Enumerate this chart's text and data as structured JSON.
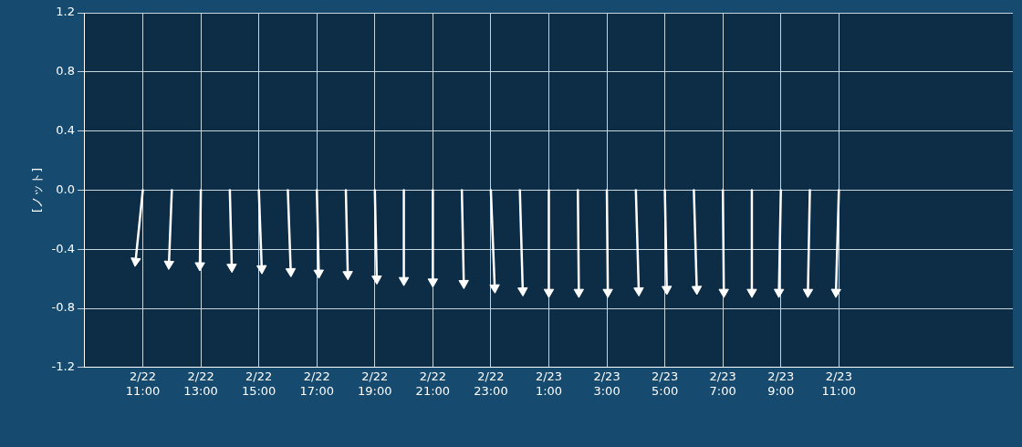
{
  "chart_data": {
    "type": "line",
    "ylabel": "[ノット]",
    "xlim": [
      "--02-22T09:00",
      "--02-23T17:00"
    ],
    "ylim": [
      -1.2,
      1.2
    ],
    "xticks": [
      {
        "value": "--02-22T11:00",
        "label": "2/22 11:00"
      },
      {
        "value": "--02-22T13:00",
        "label": "2/22 13:00"
      },
      {
        "value": "--02-22T15:00",
        "label": "2/22 15:00"
      },
      {
        "value": "--02-22T17:00",
        "label": "2/22 17:00"
      },
      {
        "value": "--02-22T19:00",
        "label": "2/22 19:00"
      },
      {
        "value": "--02-22T21:00",
        "label": "2/22 21:00"
      },
      {
        "value": "--02-22T23:00",
        "label": "2/22 23:00"
      },
      {
        "value": "--02-23T01:00",
        "label": "2/23 1:00"
      },
      {
        "value": "--02-23T03:00",
        "label": "2/23 3:00"
      },
      {
        "value": "--02-23T05:00",
        "label": "2/23 5:00"
      },
      {
        "value": "--02-23T07:00",
        "label": "2/23 7:00"
      },
      {
        "value": "--02-23T09:00",
        "label": "2/23 9:00"
      },
      {
        "value": "--02-23T11:00",
        "label": "2/23 11:00"
      }
    ],
    "yticks": [
      -1.2,
      -0.8,
      -0.4,
      {
        "value": 0,
        "label": "0.0"
      },
      0.4,
      0.8,
      1.2
    ],
    "grid": true,
    "marker": "triangle",
    "line_style": "solid",
    "series": [
      {
        "color": "#ffffff",
        "x": [
          "--02-22T11:00",
          "--02-22T10:45"
        ],
        "values": [
          0,
          -0.48
        ]
      },
      {
        "color": "#ffffff",
        "x": [
          "--02-22T12:00",
          "--02-22T11:54"
        ],
        "values": [
          0,
          -0.5
        ]
      },
      {
        "color": "#ffffff",
        "x": [
          "--02-22T13:00",
          "--02-22T12:58"
        ],
        "values": [
          0,
          -0.51
        ]
      },
      {
        "color": "#ffffff",
        "x": [
          "--02-22T14:00",
          "--02-22T14:04"
        ],
        "values": [
          0,
          -0.52
        ]
      },
      {
        "color": "#ffffff",
        "x": [
          "--02-22T15:00",
          "--02-22T15:06"
        ],
        "values": [
          0,
          -0.53
        ]
      },
      {
        "color": "#ffffff",
        "x": [
          "--02-22T16:00",
          "--02-22T16:06"
        ],
        "values": [
          0,
          -0.55
        ]
      },
      {
        "color": "#ffffff",
        "x": [
          "--02-22T17:00",
          "--02-22T17:04"
        ],
        "values": [
          0,
          -0.56
        ]
      },
      {
        "color": "#ffffff",
        "x": [
          "--02-22T18:00",
          "--02-22T18:04"
        ],
        "values": [
          0,
          -0.57
        ]
      },
      {
        "color": "#ffffff",
        "x": [
          "--02-22T19:00",
          "--02-22T19:04"
        ],
        "values": [
          0,
          -0.6
        ]
      },
      {
        "color": "#ffffff",
        "x": [
          "--02-22T20:00",
          "--02-22T20:00"
        ],
        "values": [
          0,
          -0.61
        ]
      },
      {
        "color": "#ffffff",
        "x": [
          "--02-22T21:00",
          "--02-22T21:00"
        ],
        "values": [
          0,
          -0.62
        ]
      },
      {
        "color": "#ffffff",
        "x": [
          "--02-22T22:00",
          "--02-22T22:04"
        ],
        "values": [
          0,
          -0.63
        ]
      },
      {
        "color": "#ffffff",
        "x": [
          "--02-22T23:00",
          "--02-22T23:08"
        ],
        "values": [
          0,
          -0.66
        ]
      },
      {
        "color": "#ffffff",
        "x": [
          "--02-23T00:00",
          "--02-23T00:06"
        ],
        "values": [
          0,
          -0.68
        ]
      },
      {
        "color": "#ffffff",
        "x": [
          "--02-23T01:00",
          "--02-23T01:00"
        ],
        "values": [
          0,
          -0.69
        ]
      },
      {
        "color": "#ffffff",
        "x": [
          "--02-23T02:00",
          "--02-23T02:02"
        ],
        "values": [
          0,
          -0.69
        ]
      },
      {
        "color": "#ffffff",
        "x": [
          "--02-23T03:00",
          "--02-23T03:02"
        ],
        "values": [
          0,
          -0.69
        ]
      },
      {
        "color": "#ffffff",
        "x": [
          "--02-23T04:00",
          "--02-23T04:06"
        ],
        "values": [
          0,
          -0.68
        ]
      },
      {
        "color": "#ffffff",
        "x": [
          "--02-23T05:00",
          "--02-23T05:04"
        ],
        "values": [
          0,
          -0.67
        ]
      },
      {
        "color": "#ffffff",
        "x": [
          "--02-23T06:00",
          "--02-23T06:06"
        ],
        "values": [
          0,
          -0.67
        ]
      },
      {
        "color": "#ffffff",
        "x": [
          "--02-23T07:00",
          "--02-23T07:02"
        ],
        "values": [
          0,
          -0.69
        ]
      },
      {
        "color": "#ffffff",
        "x": [
          "--02-23T08:00",
          "--02-23T08:00"
        ],
        "values": [
          0,
          -0.69
        ]
      },
      {
        "color": "#ffffff",
        "x": [
          "--02-23T09:00",
          "--02-23T08:56"
        ],
        "values": [
          0,
          -0.69
        ]
      },
      {
        "color": "#ffffff",
        "x": [
          "--02-23T10:00",
          "--02-23T09:56"
        ],
        "values": [
          0,
          -0.69
        ]
      },
      {
        "color": "#ffffff",
        "x": [
          "--02-23T11:00",
          "--02-23T10:54"
        ],
        "values": [
          0,
          -0.69
        ]
      }
    ]
  }
}
